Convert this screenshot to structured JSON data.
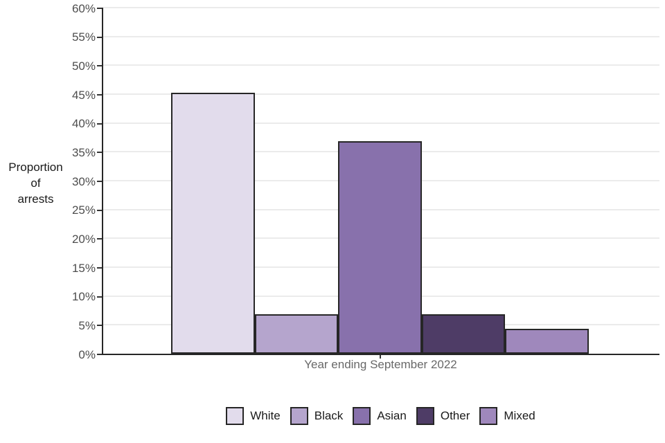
{
  "chart_data": {
    "type": "bar",
    "title": "",
    "categories": [
      "White",
      "Black",
      "Asian",
      "Other",
      "Mixed"
    ],
    "values": [
      45.2,
      6.9,
      36.8,
      6.9,
      4.3
    ],
    "colors": [
      "#e2dcec",
      "#b5a5cd",
      "#8871ac",
      "#4e3c66",
      "#9f88bc"
    ],
    "xlabel": "Year ending September 2022",
    "ylabel": "Proportion\nof\narrests",
    "ylim": [
      0,
      60
    ],
    "ytick_step": 5,
    "ytick_suffix": "%",
    "grid": true,
    "legend_position": "bottom",
    "legend": [
      "White",
      "Black",
      "Asian",
      "Other",
      "Mixed"
    ],
    "axis_color": "#262626",
    "grid_color": "#ebebeb",
    "tick_label_color": "#4d4d4d",
    "xlabel_color": "#686868",
    "bar_border_color": "#262626",
    "text_color": "#1a1a1a"
  }
}
